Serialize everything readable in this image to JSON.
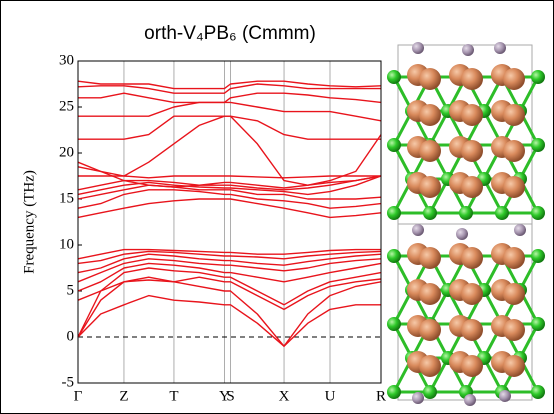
{
  "chart_data": {
    "type": "line",
    "title": "orth-V₄PB₆ (Cmmm)",
    "ylabel": "Frequency (THz)",
    "color": "#e8141c",
    "hline": 0,
    "xlim": [
      0,
      6
    ],
    "ylim": [
      -5,
      30
    ],
    "yticks": [
      -5,
      0,
      5,
      10,
      15,
      20,
      25,
      30
    ],
    "xticks": [
      {
        "value": 0,
        "label": "Γ"
      },
      {
        "value": 0.91,
        "label": "Z"
      },
      {
        "value": 1.9,
        "label": "T"
      },
      {
        "value": 2.9,
        "label": "Y"
      },
      {
        "value": 3.02,
        "label": "S"
      },
      {
        "value": 4.08,
        "label": "X"
      },
      {
        "value": 4.99,
        "label": "U"
      },
      {
        "value": 6,
        "label": "R"
      }
    ],
    "x": [
      0,
      0.45,
      0.91,
      1.4,
      1.9,
      2.4,
      2.9,
      3.02,
      3.55,
      4.08,
      4.55,
      4.99,
      5.5,
      6
    ],
    "series": [
      {
        "values": [
          0,
          2.5,
          3.5,
          4.5,
          4,
          3.8,
          3.5,
          3.5,
          1.5,
          -1,
          1.5,
          3,
          3.5,
          3.5
        ]
      },
      {
        "values": [
          0,
          4,
          6,
          6.5,
          6,
          5.5,
          5,
          5,
          2.5,
          -1,
          2.5,
          4.5,
          5.5,
          6
        ]
      },
      {
        "values": [
          0,
          5,
          7,
          7.5,
          7.2,
          7,
          6.5,
          6.5,
          5,
          3.5,
          5,
          6,
          6.5,
          7
        ]
      },
      {
        "values": [
          5,
          6,
          7.5,
          8,
          7.8,
          7.5,
          7,
          7,
          6.5,
          6,
          6.5,
          7,
          7.5,
          8
        ]
      },
      {
        "values": [
          6,
          7,
          8,
          8.5,
          8.3,
          8,
          7.8,
          7.8,
          7.5,
          7.2,
          7.5,
          8,
          8.3,
          8.5
        ]
      },
      {
        "values": [
          7,
          7.5,
          8.5,
          9,
          8.8,
          8.5,
          8.3,
          8.3,
          8,
          7.8,
          8.2,
          8.5,
          8.8,
          9
        ]
      },
      {
        "values": [
          8,
          8.3,
          9,
          9.3,
          9.2,
          9,
          8.8,
          8.8,
          8.7,
          8.5,
          8.8,
          9,
          9.2,
          9.3
        ]
      },
      {
        "values": [
          8.5,
          9,
          9.5,
          9.5,
          9.4,
          9.3,
          9.2,
          9.2,
          9,
          9,
          9.2,
          9.4,
          9.5,
          9.5
        ]
      },
      {
        "values": [
          4,
          5,
          6,
          6.2,
          6,
          6.5,
          6,
          6,
          4.5,
          3,
          4.5,
          5.5,
          6,
          6.3
        ]
      },
      {
        "values": [
          13,
          13.5,
          14,
          14.5,
          14.8,
          15,
          15,
          15,
          14.5,
          14,
          13.5,
          13,
          13.2,
          13.5
        ]
      },
      {
        "values": [
          14,
          14.5,
          15.5,
          16,
          16,
          15.8,
          15.5,
          15.5,
          15,
          14.8,
          14.5,
          14,
          14.2,
          14.5
        ]
      },
      {
        "values": [
          15,
          15.5,
          16,
          16.5,
          16.3,
          16,
          16,
          16,
          15.5,
          15.5,
          15,
          15,
          15,
          15.2
        ]
      },
      {
        "values": [
          15.5,
          16,
          16.5,
          16.8,
          16.5,
          16.3,
          16.2,
          16.2,
          16,
          15.8,
          15.5,
          15.8,
          16.5,
          17.5
        ]
      },
      {
        "values": [
          16,
          16.5,
          17,
          17,
          16.8,
          16.5,
          16.5,
          16.5,
          16.2,
          16,
          16.2,
          16.5,
          17,
          17.5
        ]
      },
      {
        "values": [
          17.5,
          17.5,
          17.5,
          17.3,
          17.5,
          17.5,
          17.5,
          17.5,
          17.4,
          17.3,
          17.4,
          17.5,
          17.5,
          17.5
        ]
      },
      {
        "values": [
          18.5,
          18,
          17,
          16.5,
          16.3,
          16.5,
          16.8,
          16.8,
          16.5,
          16.2,
          16.5,
          16.8,
          17,
          17.5
        ]
      },
      {
        "values": [
          21.5,
          21.5,
          21.5,
          22,
          24,
          24,
          24,
          24,
          23.5,
          22,
          21.5,
          21.5,
          21.5,
          21.5
        ]
      },
      {
        "values": [
          19,
          18,
          17.5,
          19,
          21,
          23,
          24,
          24,
          21,
          17,
          16.5,
          17,
          18,
          22
        ]
      },
      {
        "values": [
          24,
          24,
          24,
          24,
          25,
          25.5,
          25.5,
          25.5,
          25,
          24.5,
          24.5,
          24.5,
          24,
          23.5
        ]
      },
      {
        "values": [
          26,
          26,
          26.5,
          26,
          25.5,
          25.5,
          25.5,
          26,
          26.5,
          26.5,
          26.3,
          26,
          25.8,
          25.5
        ]
      },
      {
        "values": [
          27.2,
          27.3,
          27.3,
          27,
          26.5,
          26.5,
          26.5,
          27,
          27.5,
          27.3,
          27,
          27,
          27,
          27
        ]
      },
      {
        "values": [
          27.8,
          27.5,
          27.5,
          27.5,
          27,
          27,
          27,
          27.5,
          27.8,
          27.8,
          27.5,
          27.3,
          27.2,
          27.3
        ]
      }
    ]
  }
}
